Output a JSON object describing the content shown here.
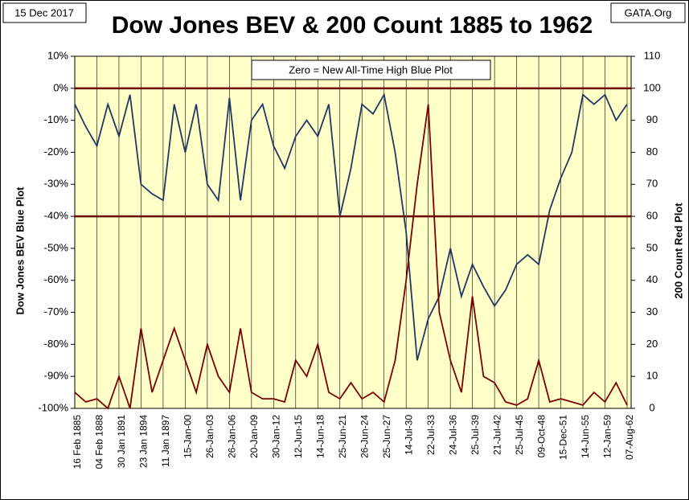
{
  "chart_data": {
    "type": "line",
    "title": "Dow Jones BEV & 200 Count 1885 to 1962",
    "date_note": "15 Dec 2017",
    "source": "GATA.Org",
    "annotation": "Zero = New All-Time High Blue Plot",
    "y_label": "Dow Jones BEV   Blue Plot",
    "y2_label": "200 Count   Red Plot",
    "categories": [
      "16 Feb 1885",
      null,
      "04 Feb 1888",
      null,
      "30 Jan 1891",
      null,
      "23 Jan 1894",
      null,
      "11 Jan 1897",
      null,
      "15-Jan-00",
      null,
      "26-Jan-03",
      null,
      "26-Jan-06",
      null,
      "20-Jan-09",
      null,
      "30-Jan-12",
      null,
      "12-Jun-15",
      null,
      "14-Jun-18",
      null,
      "25-Jun-21",
      null,
      "26-Jun-24",
      null,
      "25-Jun-27",
      null,
      "14-Jul-30",
      null,
      "22-Jul-33",
      null,
      "24-Jul-36",
      null,
      "25-Jul-39",
      null,
      "21-Jul-42",
      null,
      "25-Jul-45",
      null,
      "09-Oct-48",
      null,
      "15-Dec-51",
      null,
      "14-Jun-55",
      null,
      "12-Jan-59",
      null,
      "07-Aug-62"
    ],
    "series": [
      {
        "name": "Dow Jones BEV",
        "color": "#1f3864",
        "values": [
          -5,
          -12,
          -18,
          -5,
          -15,
          -2,
          -30,
          -33,
          -35,
          -5,
          -20,
          -5,
          -30,
          -35,
          -3,
          -35,
          -10,
          -5,
          -18,
          -25,
          -15,
          -10,
          -15,
          -5,
          -40,
          -25,
          -5,
          -8,
          -2,
          -20,
          -45,
          -85,
          -72,
          -65,
          -50,
          -65,
          -55,
          -62,
          -68,
          -63,
          -55,
          -52,
          -55,
          -38,
          -28,
          -20,
          -2,
          -5,
          -2,
          -10,
          -5
        ]
      },
      {
        "name": "200 Count",
        "color": "#7b0000",
        "axis": "y2",
        "values": [
          5,
          2,
          3,
          0,
          10,
          0,
          25,
          5,
          15,
          25,
          15,
          5,
          20,
          10,
          5,
          25,
          5,
          3,
          3,
          2,
          15,
          10,
          20,
          5,
          3,
          8,
          3,
          5,
          2,
          15,
          40,
          70,
          95,
          30,
          15,
          5,
          35,
          10,
          8,
          2,
          1,
          3,
          15,
          2,
          3,
          2,
          1,
          5,
          2,
          8,
          1
        ]
      }
    ],
    "reference_lines_y": [
      0,
      -40
    ],
    "reference_color": "#6b0000",
    "ylim": [
      -100,
      10
    ],
    "yticks": [
      {
        "value": -100,
        "label": "-100%"
      },
      {
        "value": -90,
        "label": "-90%"
      },
      {
        "value": -80,
        "label": "-80%"
      },
      {
        "value": -70,
        "label": "-70%"
      },
      {
        "value": -60,
        "label": "-60%"
      },
      {
        "value": -50,
        "label": "-50%"
      },
      {
        "value": -40,
        "label": "-40%"
      },
      {
        "value": -30,
        "label": "-30%"
      },
      {
        "value": -20,
        "label": "-20%"
      },
      {
        "value": -10,
        "label": "-10%"
      },
      {
        "value": 0,
        "label": "0%"
      },
      {
        "value": 10,
        "label": "10%"
      }
    ],
    "y2lim": [
      0,
      110
    ],
    "y2ticks": [
      0,
      10,
      20,
      30,
      40,
      50,
      60,
      70,
      80,
      90,
      100,
      110
    ],
    "grid": "x",
    "plot_background": "#ffffc8"
  }
}
